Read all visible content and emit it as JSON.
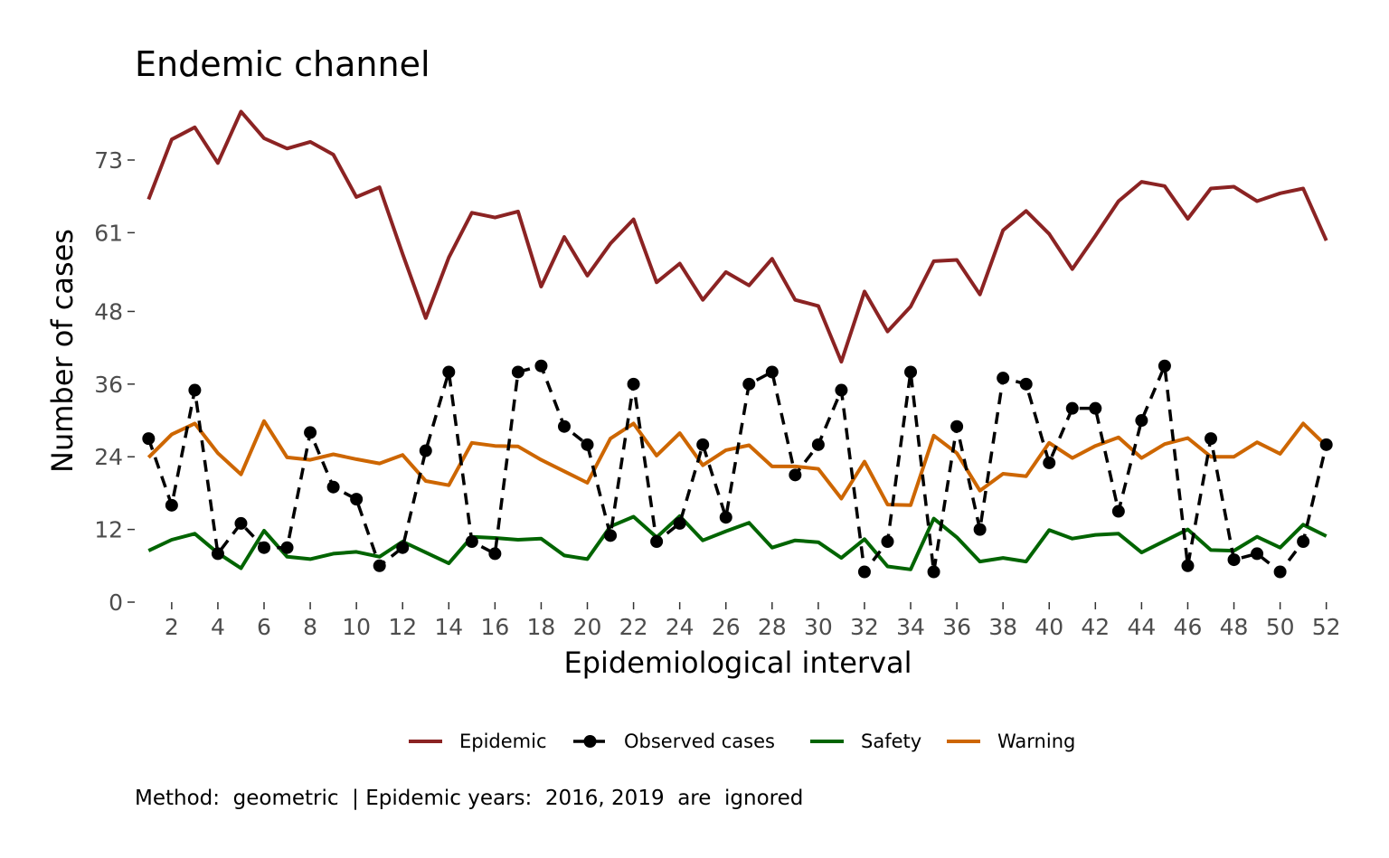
{
  "chart_data": {
    "type": "line",
    "title": "Endemic channel",
    "xlabel": "Epidemiological interval",
    "ylabel": "Number of cases",
    "caption": "Method:  geometric  | Epidemic years:  2016, 2019  are  ignored",
    "x": [
      1,
      2,
      3,
      4,
      5,
      6,
      7,
      8,
      9,
      10,
      11,
      12,
      13,
      14,
      15,
      16,
      17,
      18,
      19,
      20,
      21,
      22,
      23,
      24,
      25,
      26,
      27,
      28,
      29,
      30,
      31,
      32,
      33,
      34,
      35,
      36,
      37,
      38,
      39,
      40,
      41,
      42,
      43,
      44,
      45,
      46,
      47,
      48,
      49,
      50,
      51,
      52
    ],
    "xticks": [
      2,
      4,
      6,
      8,
      10,
      12,
      14,
      16,
      18,
      20,
      22,
      24,
      26,
      28,
      30,
      32,
      34,
      36,
      38,
      40,
      42,
      44,
      46,
      48,
      50,
      52
    ],
    "yticks": [
      0,
      12,
      24,
      36,
      48,
      61,
      73
    ],
    "xlim": [
      0.4,
      52.6
    ],
    "ylim": [
      0,
      83
    ],
    "grid": false,
    "legend_position": "bottom",
    "series": [
      {
        "name": "Epidemic",
        "color": "#8B2323",
        "style": "solid",
        "values": [
          66.5,
          76.4,
          78.4,
          72.5,
          81.0,
          76.6,
          74.9,
          76.0,
          73.9,
          66.9,
          68.5,
          57.5,
          46.9,
          56.9,
          64.3,
          63.5,
          64.5,
          52.1,
          60.3,
          53.9,
          59.2,
          63.2,
          52.8,
          55.9,
          49.9,
          54.5,
          52.3,
          56.7,
          49.9,
          48.9,
          39.7,
          51.3,
          44.7,
          48.8,
          56.3,
          56.5,
          50.8,
          61.4,
          64.6,
          60.8,
          55.0,
          60.5,
          66.2,
          69.4,
          68.7,
          63.3,
          68.3,
          68.6,
          66.2,
          67.5,
          68.3,
          59.7
        ]
      },
      {
        "name": "Observed cases",
        "color": "#000000",
        "style": "dashed-points",
        "values": [
          27,
          16,
          35,
          8,
          13,
          9,
          9,
          28,
          19,
          17,
          6,
          9,
          25,
          38,
          10,
          8,
          38,
          39,
          29,
          26,
          11,
          36,
          10,
          13,
          26,
          14,
          36,
          38,
          21,
          26,
          35,
          5,
          10,
          38,
          5,
          29,
          12,
          37,
          36,
          23,
          32,
          32,
          15,
          30,
          39,
          6,
          27,
          7,
          8,
          5,
          10,
          26
        ]
      },
      {
        "name": "Safety",
        "color": "#006400",
        "style": "solid",
        "values": [
          8.5,
          10.3,
          11.3,
          8.1,
          5.6,
          11.8,
          7.5,
          7.1,
          8.0,
          8.3,
          7.5,
          10.0,
          8.2,
          6.4,
          10.8,
          10.6,
          10.3,
          10.5,
          7.7,
          7.1,
          12.5,
          14.1,
          10.7,
          14.2,
          10.2,
          11.7,
          13.1,
          9.0,
          10.2,
          9.9,
          7.3,
          10.4,
          5.9,
          5.4,
          13.8,
          10.7,
          6.7,
          7.3,
          6.7,
          11.9,
          10.5,
          11.1,
          11.3,
          8.2,
          10.1,
          12.0,
          8.6,
          8.5,
          10.8,
          9.0,
          12.8,
          10.9
        ]
      },
      {
        "name": "Warning",
        "color": "#CD6600",
        "style": "solid",
        "values": [
          23.9,
          27.7,
          29.5,
          24.6,
          21.1,
          29.9,
          23.9,
          23.5,
          24.4,
          23.6,
          22.9,
          24.3,
          20.0,
          19.3,
          26.3,
          25.8,
          25.7,
          23.5,
          21.6,
          19.7,
          27.0,
          29.5,
          24.2,
          27.9,
          22.6,
          25.1,
          25.9,
          22.4,
          22.4,
          22.0,
          17.1,
          23.2,
          16.1,
          16.0,
          27.5,
          24.6,
          18.4,
          21.2,
          20.8,
          26.3,
          23.8,
          25.8,
          27.2,
          23.8,
          26.1,
          27.1,
          24.0,
          24.0,
          26.4,
          24.5,
          29.5,
          25.8
        ]
      }
    ]
  }
}
